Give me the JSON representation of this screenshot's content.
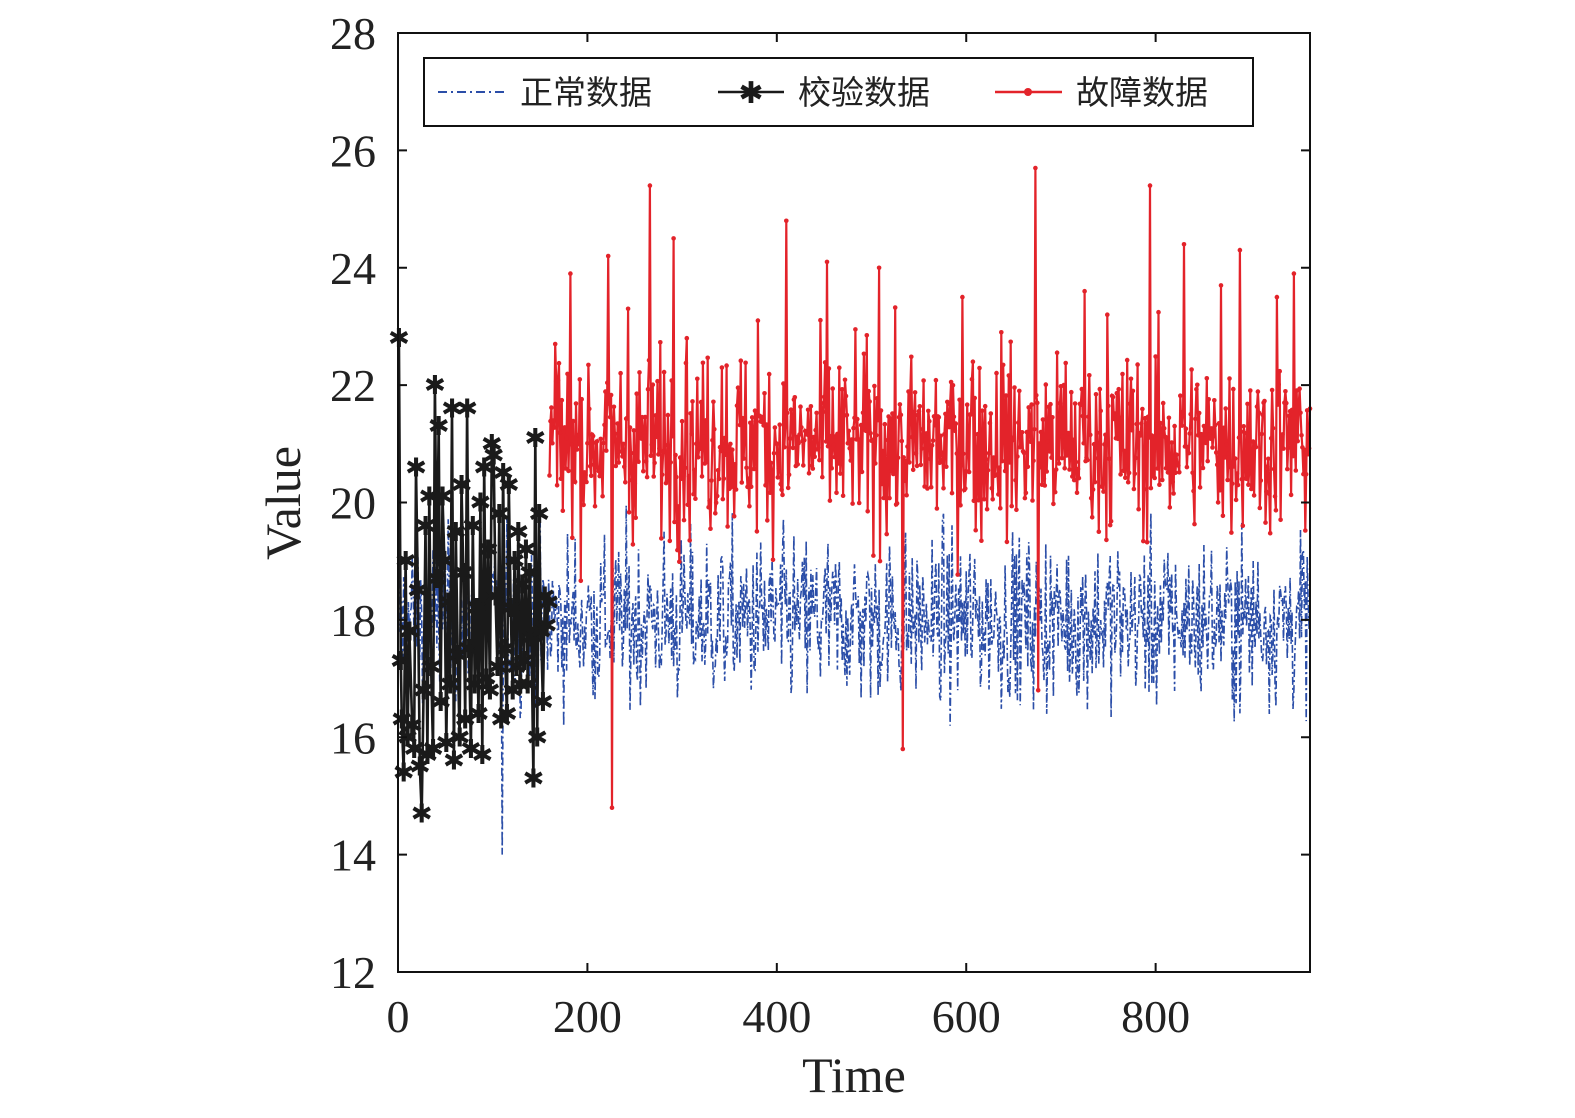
{
  "chart_data": {
    "type": "line",
    "xlabel": "Time",
    "ylabel": "Value",
    "xlim": [
      0,
      963
    ],
    "ylim": [
      12,
      28
    ],
    "xticks": [
      0,
      200,
      400,
      600,
      800
    ],
    "yticks": [
      12,
      14,
      16,
      18,
      20,
      22,
      24,
      26,
      28
    ],
    "xtick_labels": [
      "0",
      "200",
      "400",
      "600",
      "800"
    ],
    "ytick_labels": [
      "12",
      "14",
      "16",
      "18",
      "20",
      "22",
      "24",
      "26",
      "28"
    ],
    "grid": false,
    "legend_position": "top",
    "series": [
      {
        "name": "正常数据",
        "color": "#2b4ea8",
        "style": "dash-dot",
        "x_range": [
          0,
          963
        ],
        "approx_mean": 18.0,
        "approx_min": 14.0,
        "approx_max": 22.4
      },
      {
        "name": "校验数据",
        "color": "#1a1a1a",
        "style": "solid-star-markers",
        "x_range": [
          0,
          160
        ],
        "approx_mean": 18.0,
        "points": [
          [
            1,
            22.8
          ],
          [
            3,
            17.3
          ],
          [
            4,
            16.3
          ],
          [
            6,
            15.4
          ],
          [
            8,
            19.0
          ],
          [
            10,
            16.0
          ],
          [
            12,
            17.8
          ],
          [
            15,
            16.2
          ],
          [
            17,
            15.8
          ],
          [
            19,
            20.6
          ],
          [
            21,
            18.5
          ],
          [
            23,
            15.5
          ],
          [
            25,
            14.7
          ],
          [
            27,
            16.8
          ],
          [
            29,
            19.6
          ],
          [
            31,
            15.7
          ],
          [
            33,
            20.1
          ],
          [
            35,
            17.2
          ],
          [
            37,
            15.8
          ],
          [
            39,
            22.0
          ],
          [
            41,
            18.7
          ],
          [
            43,
            21.3
          ],
          [
            45,
            16.6
          ],
          [
            47,
            20.1
          ],
          [
            49,
            19.0
          ],
          [
            51,
            15.9
          ],
          [
            53,
            18.3
          ],
          [
            55,
            16.9
          ],
          [
            57,
            21.6
          ],
          [
            59,
            15.6
          ],
          [
            61,
            19.5
          ],
          [
            63,
            17.4
          ],
          [
            65,
            16.0
          ],
          [
            67,
            20.3
          ],
          [
            69,
            18.8
          ],
          [
            71,
            16.3
          ],
          [
            73,
            21.6
          ],
          [
            75,
            17.5
          ],
          [
            77,
            15.8
          ],
          [
            79,
            19.6
          ],
          [
            81,
            16.9
          ],
          [
            83,
            18.2
          ],
          [
            85,
            16.4
          ],
          [
            87,
            20.0
          ],
          [
            89,
            15.7
          ],
          [
            91,
            20.6
          ],
          [
            93,
            17.0
          ],
          [
            95,
            19.2
          ],
          [
            97,
            16.8
          ],
          [
            99,
            21.0
          ],
          [
            101,
            20.8
          ],
          [
            103,
            18.4
          ],
          [
            105,
            17.2
          ],
          [
            107,
            19.8
          ],
          [
            109,
            16.3
          ],
          [
            111,
            20.5
          ],
          [
            113,
            17.5
          ],
          [
            115,
            16.4
          ],
          [
            117,
            20.3
          ],
          [
            119,
            18.2
          ],
          [
            121,
            16.8
          ],
          [
            123,
            19.0
          ],
          [
            125,
            17.2
          ],
          [
            127,
            19.5
          ],
          [
            129,
            16.9
          ],
          [
            131,
            18.6
          ],
          [
            133,
            17.3
          ],
          [
            135,
            19.2
          ],
          [
            137,
            16.9
          ],
          [
            139,
            18.8
          ],
          [
            141,
            17.7
          ],
          [
            143,
            15.3
          ],
          [
            145,
            21.1
          ],
          [
            147,
            16.0
          ],
          [
            149,
            19.8
          ],
          [
            151,
            17.8
          ],
          [
            153,
            16.6
          ],
          [
            155,
            18.4
          ],
          [
            157,
            17.9
          ],
          [
            159,
            18.3
          ]
        ]
      },
      {
        "name": "故障数据",
        "color": "#e3232a",
        "style": "solid-dot-markers",
        "x_range": [
          160,
          963
        ],
        "approx_mean": 21.0,
        "approx_min": 14.8,
        "approx_max": 25.7,
        "peaks": [
          [
            166,
            22.7
          ],
          [
            182,
            23.9
          ],
          [
            222,
            24.2
          ],
          [
            226,
            14.8
          ],
          [
            243,
            23.3
          ],
          [
            266,
            25.4
          ],
          [
            291,
            24.5
          ],
          [
            305,
            22.8
          ],
          [
            342,
            22.3
          ],
          [
            380,
            23.1
          ],
          [
            410,
            24.8
          ],
          [
            453,
            24.1
          ],
          [
            508,
            24.0
          ],
          [
            533,
            15.8
          ],
          [
            596,
            23.5
          ],
          [
            607,
            22.4
          ],
          [
            637,
            22.9
          ],
          [
            673,
            25.7
          ],
          [
            676,
            16.8
          ],
          [
            725,
            23.6
          ],
          [
            749,
            23.2
          ],
          [
            794,
            25.4
          ],
          [
            830,
            24.4
          ],
          [
            869,
            23.7
          ],
          [
            889,
            24.3
          ],
          [
            928,
            23.5
          ],
          [
            946,
            23.9
          ],
          [
            963,
            21.6
          ]
        ]
      }
    ]
  }
}
